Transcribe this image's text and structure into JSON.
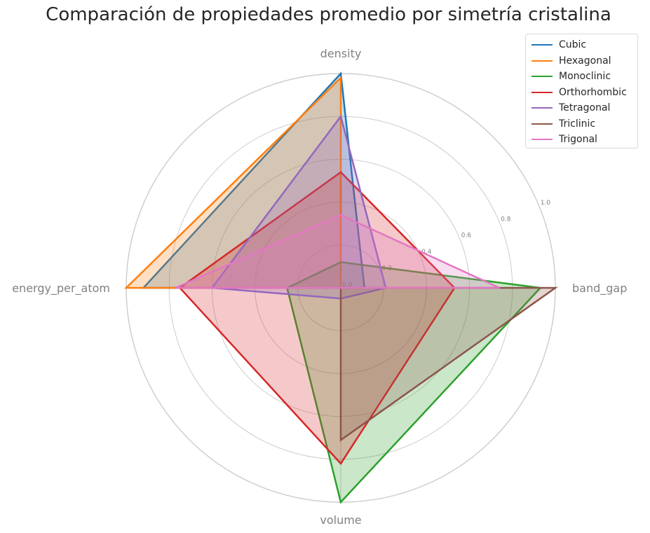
{
  "chart_data": {
    "type": "radar",
    "title": "Comparación de propiedades promedio por simetría cristalina",
    "axes": [
      "density",
      "band_gap",
      "volume",
      "energy_per_atom"
    ],
    "rlim": [
      0,
      1
    ],
    "radial_ticks": [
      "0.0",
      "0.2",
      "0.4",
      "0.6",
      "0.8",
      "1.0"
    ],
    "grid": true,
    "legend_position": "top-right",
    "series": [
      {
        "name": "Cubic",
        "color": "#1f77b4",
        "values": [
          1.0,
          0.11,
          0.0,
          0.92
        ]
      },
      {
        "name": "Hexagonal",
        "color": "#ff7f0e",
        "values": [
          0.98,
          0.0,
          0.0,
          1.0
        ]
      },
      {
        "name": "Monoclinic",
        "color": "#2ca02c",
        "values": [
          0.12,
          0.93,
          1.0,
          0.25
        ]
      },
      {
        "name": "Orthorhombic",
        "color": "#d62728",
        "values": [
          0.54,
          0.53,
          0.82,
          0.75
        ]
      },
      {
        "name": "Tetragonal",
        "color": "#9467bd",
        "values": [
          0.8,
          0.21,
          0.05,
          0.6
        ]
      },
      {
        "name": "Triclinic",
        "color": "#8c564b",
        "values": [
          0.0,
          1.0,
          0.71,
          0.0
        ]
      },
      {
        "name": "Trigonal",
        "color": "#e377c2",
        "values": [
          0.34,
          0.74,
          0.0,
          0.77
        ]
      }
    ]
  }
}
